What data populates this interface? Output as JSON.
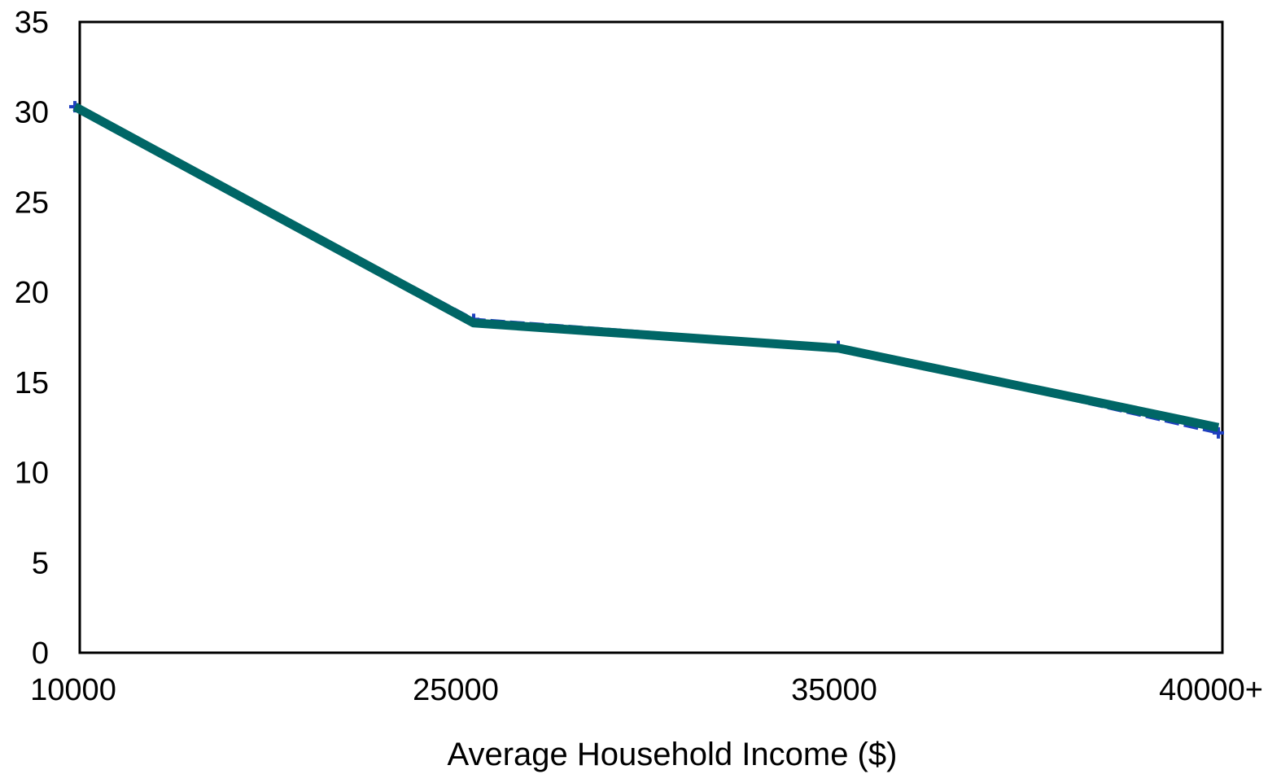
{
  "chart_data": {
    "type": "line",
    "title": "",
    "xlabel": "Average Household Income ($)",
    "ylabel": "",
    "categories": [
      "10000",
      "25000",
      "35000",
      "40000+"
    ],
    "ylim": [
      0,
      35
    ],
    "yticks": [
      "0",
      "5",
      "10",
      "15",
      "20",
      "25",
      "30",
      "35"
    ],
    "grid": false,
    "legend": "none",
    "series": [
      {
        "color": "#006666",
        "values": [
          30.3,
          18.3,
          16.9,
          12.5
        ]
      },
      {
        "color": "#1f3fbf",
        "values": [
          30.3,
          18.5,
          17.0,
          12.2
        ]
      }
    ]
  }
}
